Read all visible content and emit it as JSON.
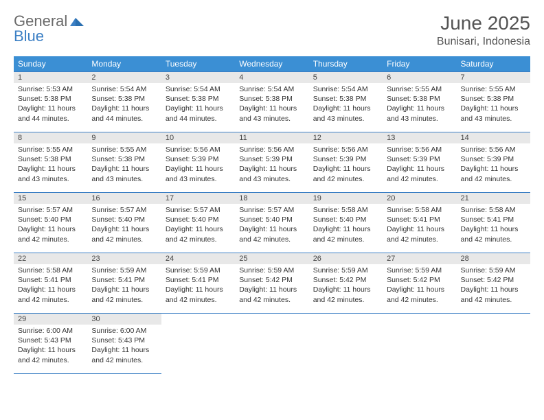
{
  "logo": {
    "part1": "General",
    "part2": "Blue"
  },
  "title": "June 2025",
  "location": "Bunisari, Indonesia",
  "colors": {
    "header_bg": "#3b8fd4",
    "header_text": "#ffffff",
    "border": "#3b7fc4",
    "daynum_bg": "#e8e8e8",
    "text": "#333333",
    "logo_gray": "#6b6b6b",
    "logo_blue": "#3b7fc4"
  },
  "weekdays": [
    "Sunday",
    "Monday",
    "Tuesday",
    "Wednesday",
    "Thursday",
    "Friday",
    "Saturday"
  ],
  "weeks": [
    [
      {
        "n": "1",
        "sr": "5:53 AM",
        "ss": "5:38 PM",
        "dl": "11 hours and 44 minutes."
      },
      {
        "n": "2",
        "sr": "5:54 AM",
        "ss": "5:38 PM",
        "dl": "11 hours and 44 minutes."
      },
      {
        "n": "3",
        "sr": "5:54 AM",
        "ss": "5:38 PM",
        "dl": "11 hours and 44 minutes."
      },
      {
        "n": "4",
        "sr": "5:54 AM",
        "ss": "5:38 PM",
        "dl": "11 hours and 43 minutes."
      },
      {
        "n": "5",
        "sr": "5:54 AM",
        "ss": "5:38 PM",
        "dl": "11 hours and 43 minutes."
      },
      {
        "n": "6",
        "sr": "5:55 AM",
        "ss": "5:38 PM",
        "dl": "11 hours and 43 minutes."
      },
      {
        "n": "7",
        "sr": "5:55 AM",
        "ss": "5:38 PM",
        "dl": "11 hours and 43 minutes."
      }
    ],
    [
      {
        "n": "8",
        "sr": "5:55 AM",
        "ss": "5:38 PM",
        "dl": "11 hours and 43 minutes."
      },
      {
        "n": "9",
        "sr": "5:55 AM",
        "ss": "5:38 PM",
        "dl": "11 hours and 43 minutes."
      },
      {
        "n": "10",
        "sr": "5:56 AM",
        "ss": "5:39 PM",
        "dl": "11 hours and 43 minutes."
      },
      {
        "n": "11",
        "sr": "5:56 AM",
        "ss": "5:39 PM",
        "dl": "11 hours and 43 minutes."
      },
      {
        "n": "12",
        "sr": "5:56 AM",
        "ss": "5:39 PM",
        "dl": "11 hours and 42 minutes."
      },
      {
        "n": "13",
        "sr": "5:56 AM",
        "ss": "5:39 PM",
        "dl": "11 hours and 42 minutes."
      },
      {
        "n": "14",
        "sr": "5:56 AM",
        "ss": "5:39 PM",
        "dl": "11 hours and 42 minutes."
      }
    ],
    [
      {
        "n": "15",
        "sr": "5:57 AM",
        "ss": "5:40 PM",
        "dl": "11 hours and 42 minutes."
      },
      {
        "n": "16",
        "sr": "5:57 AM",
        "ss": "5:40 PM",
        "dl": "11 hours and 42 minutes."
      },
      {
        "n": "17",
        "sr": "5:57 AM",
        "ss": "5:40 PM",
        "dl": "11 hours and 42 minutes."
      },
      {
        "n": "18",
        "sr": "5:57 AM",
        "ss": "5:40 PM",
        "dl": "11 hours and 42 minutes."
      },
      {
        "n": "19",
        "sr": "5:58 AM",
        "ss": "5:40 PM",
        "dl": "11 hours and 42 minutes."
      },
      {
        "n": "20",
        "sr": "5:58 AM",
        "ss": "5:41 PM",
        "dl": "11 hours and 42 minutes."
      },
      {
        "n": "21",
        "sr": "5:58 AM",
        "ss": "5:41 PM",
        "dl": "11 hours and 42 minutes."
      }
    ],
    [
      {
        "n": "22",
        "sr": "5:58 AM",
        "ss": "5:41 PM",
        "dl": "11 hours and 42 minutes."
      },
      {
        "n": "23",
        "sr": "5:59 AM",
        "ss": "5:41 PM",
        "dl": "11 hours and 42 minutes."
      },
      {
        "n": "24",
        "sr": "5:59 AM",
        "ss": "5:41 PM",
        "dl": "11 hours and 42 minutes."
      },
      {
        "n": "25",
        "sr": "5:59 AM",
        "ss": "5:42 PM",
        "dl": "11 hours and 42 minutes."
      },
      {
        "n": "26",
        "sr": "5:59 AM",
        "ss": "5:42 PM",
        "dl": "11 hours and 42 minutes."
      },
      {
        "n": "27",
        "sr": "5:59 AM",
        "ss": "5:42 PM",
        "dl": "11 hours and 42 minutes."
      },
      {
        "n": "28",
        "sr": "5:59 AM",
        "ss": "5:42 PM",
        "dl": "11 hours and 42 minutes."
      }
    ],
    [
      {
        "n": "29",
        "sr": "6:00 AM",
        "ss": "5:43 PM",
        "dl": "11 hours and 42 minutes."
      },
      {
        "n": "30",
        "sr": "6:00 AM",
        "ss": "5:43 PM",
        "dl": "11 hours and 42 minutes."
      },
      null,
      null,
      null,
      null,
      null
    ]
  ],
  "labels": {
    "sunrise": "Sunrise:",
    "sunset": "Sunset:",
    "daylight": "Daylight:"
  }
}
